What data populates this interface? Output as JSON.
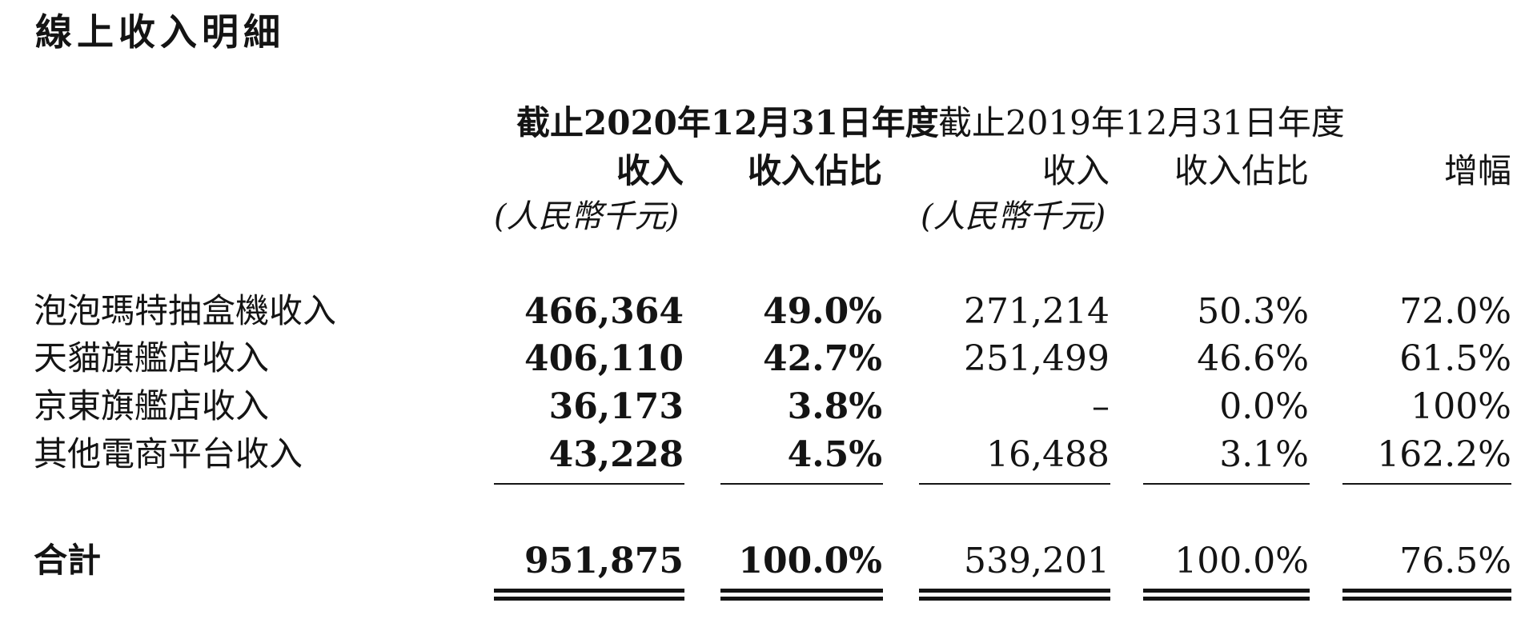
{
  "title": "線上收入明細",
  "periods": {
    "p2020": "截止2020年12月31日年度",
    "p2019": "截止2019年12月31日年度"
  },
  "columns": {
    "revenue": "收入",
    "share": "收入佔比",
    "growth": "增幅",
    "unit": "(人民幣千元)"
  },
  "rows": [
    {
      "label": "泡泡瑪特抽盒機收入",
      "rev2020": "466,364",
      "share2020": "49.0%",
      "rev2019": "271,214",
      "share2019": "50.3%",
      "growth": "72.0%"
    },
    {
      "label": "天貓旗艦店收入",
      "rev2020": "406,110",
      "share2020": "42.7%",
      "rev2019": "251,499",
      "share2019": "46.6%",
      "growth": "61.5%"
    },
    {
      "label": "京東旗艦店收入",
      "rev2020": "36,173",
      "share2020": "3.8%",
      "rev2019": "–",
      "share2019": "0.0%",
      "growth": "100%"
    },
    {
      "label": "其他電商平台收入",
      "rev2020": "43,228",
      "share2020": "4.5%",
      "rev2019": "16,488",
      "share2019": "3.1%",
      "growth": "162.2%"
    }
  ],
  "total": {
    "label": "合計",
    "rev2020": "951,875",
    "share2020": "100.0%",
    "rev2019": "539,201",
    "share2019": "100.0%",
    "growth": "76.5%"
  }
}
